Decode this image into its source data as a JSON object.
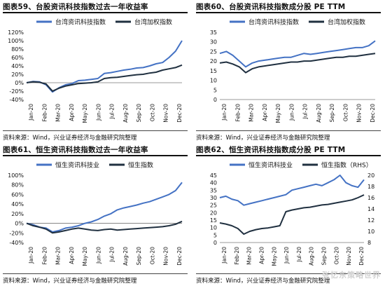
{
  "charts": [
    {
      "title": "图表59、台股资讯科技指数过去一年收益率",
      "source": "资料来源：Wind，兴业证券经济与金融研究院整理",
      "chart_data": {
        "type": "line",
        "x_tick_labels": [
          "Jan-20",
          "Feb-20",
          "Mar-20",
          "Apr-20",
          "May-20",
          "Jun-20",
          "Jul-20",
          "Aug-20",
          "Sep-20",
          "Oct-20",
          "Nov-20",
          "Dec-20"
        ],
        "ylim": [
          -40,
          120
        ],
        "y_ticks": [
          -40,
          -20,
          0,
          20,
          40,
          60,
          80,
          100,
          120
        ],
        "y_tick_labels": [
          "-40%",
          "-20%",
          "0%",
          "20%",
          "40%",
          "60%",
          "80%",
          "100%",
          "120%"
        ],
        "legend_position": "top",
        "series": [
          {
            "name": "台湾资讯科技指数",
            "color": "#4472C4",
            "values": [
              0,
              3,
              2,
              -5,
              -22,
              -12,
              -5,
              -2,
              5,
              6,
              8,
              10,
              22,
              24,
              27,
              30,
              32,
              35,
              36,
              40,
              45,
              48,
              60,
              75,
              100
            ]
          },
          {
            "name": "台湾加权指数",
            "color": "#203040",
            "values": [
              0,
              2,
              1,
              -3,
              -20,
              -13,
              -8,
              -5,
              -2,
              -1,
              0,
              2,
              10,
              12,
              13,
              15,
              17,
              19,
              20,
              23,
              25,
              30,
              33,
              36,
              42
            ]
          }
        ]
      }
    },
    {
      "title": "图表60、台股资讯科技指数成分股 PE TTM",
      "source": "资料来源：Wind，兴业证券经济与金融研究院整理",
      "chart_data": {
        "type": "line",
        "x_tick_labels": [
          "Jan-20",
          "Feb-20",
          "Mar-20",
          "Apr-20",
          "May-20",
          "Jun-20",
          "Jul-20",
          "Aug-20",
          "Sep-20",
          "Oct-20",
          "Nov-20",
          "Dec-20"
        ],
        "ylim": [
          0,
          35
        ],
        "y_ticks": [
          0,
          5,
          10,
          15,
          20,
          25,
          30,
          35
        ],
        "y_tick_labels": [
          "0",
          "5",
          "10",
          "15",
          "20",
          "25",
          "30",
          "35"
        ],
        "legend_position": "top",
        "series": [
          {
            "name": "台湾资讯科技指数",
            "color": "#4472C4",
            "values": [
              24,
              25,
              23,
              20,
              17,
              19,
              20,
              20.5,
              21,
              21.5,
              22,
              22,
              23,
              24,
              23.5,
              24,
              24.5,
              25,
              25.5,
              26,
              26.5,
              27,
              27,
              28,
              30.5
            ]
          },
          {
            "name": "台湾加权指数",
            "color": "#203040",
            "values": [
              19,
              19.5,
              18.5,
              17,
              14,
              16,
              17,
              17.5,
              18,
              18.5,
              19,
              19.5,
              19.5,
              20,
              20,
              20.5,
              21,
              21.5,
              22,
              22,
              22.5,
              22.5,
              23,
              23.5,
              24
            ]
          }
        ]
      }
    },
    {
      "title": "图表61、恒生资讯科技指数过去一年收益率",
      "source": "资料来源：Wind，兴业证券经济与金融研究院整理",
      "chart_data": {
        "type": "line",
        "x_tick_labels": [
          "Jan-20",
          "Feb-20",
          "Mar-20",
          "Apr-20",
          "May-20",
          "Jun-20",
          "Jul-20",
          "Aug-20",
          "Sep-20",
          "Oct-20",
          "Nov-20",
          "Dec-20"
        ],
        "ylim": [
          -40,
          100
        ],
        "y_ticks": [
          -40,
          -20,
          0,
          20,
          40,
          60,
          80,
          100
        ],
        "y_tick_labels": [
          "-40%",
          "-20%",
          "0%",
          "20%",
          "40%",
          "60%",
          "80%",
          "100%"
        ],
        "legend_position": "top",
        "series": [
          {
            "name": "恒生资讯科技业",
            "color": "#4472C4",
            "values": [
              0,
              -3,
              -8,
              -10,
              -18,
              -15,
              -10,
              -8,
              -5,
              0,
              3,
              8,
              15,
              20,
              28,
              32,
              35,
              38,
              42,
              45,
              50,
              55,
              60,
              68,
              85
            ]
          },
          {
            "name": "恒生指数",
            "color": "#203040",
            "values": [
              0,
              -5,
              -8,
              -12,
              -20,
              -18,
              -15,
              -12,
              -10,
              -12,
              -14,
              -15,
              -13,
              -12,
              -14,
              -13,
              -12,
              -11,
              -10,
              -9,
              -8,
              -7,
              -5,
              -2,
              4
            ]
          }
        ]
      }
    },
    {
      "title": "图表62、恒生资讯科技指数成分股 PE TTM",
      "source": "资料来源：Wind，兴业证券经济与金融研究院整理",
      "watermark": "张忆东策略世界",
      "chart_data": {
        "type": "line",
        "x_tick_labels": [
          "Jan-20",
          "Feb-20",
          "Mar-20",
          "Apr-20",
          "May-20",
          "Jun-20",
          "Jul-20",
          "Aug-20",
          "Sep-20",
          "Oct-20",
          "Nov-20",
          "Dec-20"
        ],
        "ylim": [
          0,
          45
        ],
        "y_ticks": [
          0,
          5,
          10,
          15,
          20,
          25,
          30,
          35,
          40,
          45
        ],
        "y_tick_labels": [
          "0",
          "5",
          "10",
          "15",
          "20",
          "25",
          "30",
          "35",
          "40",
          "45"
        ],
        "y2lim": [
          8,
          20
        ],
        "y2_ticks": [
          8,
          10,
          12,
          14,
          16,
          18,
          20
        ],
        "y2_tick_labels": [
          "8",
          "10",
          "12",
          "14",
          "16",
          "18",
          "20"
        ],
        "legend_position": "top",
        "series": [
          {
            "name": "恒生资讯科技业",
            "color": "#4472C4",
            "axis": "left",
            "values": [
              30,
              31,
              29,
              28,
              25,
              26,
              27,
              28,
              29,
              30,
              31,
              32,
              35,
              36,
              37,
              38,
              39,
              38,
              40,
              42,
              45,
              40,
              38,
              37,
              42
            ]
          },
          {
            "name": "恒生指数（RHS）",
            "color": "#203040",
            "axis": "right",
            "values": [
              11.5,
              11.3,
              11,
              10.5,
              9.5,
              10,
              10.3,
              10.5,
              10.6,
              10.8,
              11,
              13.5,
              13.8,
              14,
              14.2,
              14.3,
              14.5,
              14.7,
              14.8,
              15,
              15.2,
              15.4,
              15.6,
              16,
              16.5
            ]
          }
        ]
      }
    }
  ]
}
